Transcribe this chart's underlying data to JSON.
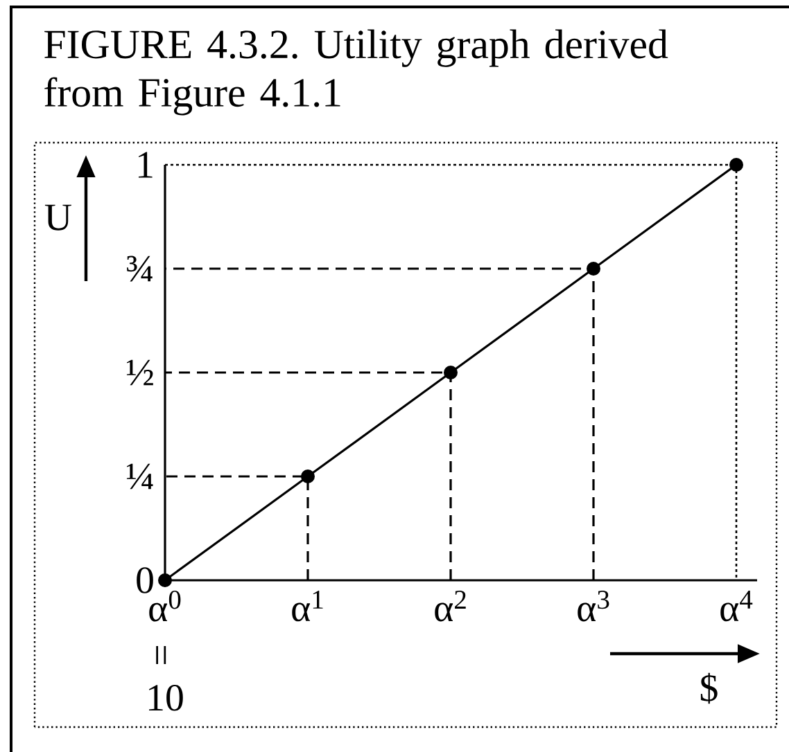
{
  "chart_data": {
    "type": "line",
    "title": "FIGURE 4.3.2. Utility graph derived from Figure 4.1.1",
    "xlabel": "$",
    "ylabel": "U",
    "annotations": [
      "=",
      "10"
    ],
    "categories": [
      "α$^{0}$",
      "α$^{1}$",
      "α$^{2}$",
      "α$^{3}$",
      "α$^{4}$"
    ],
    "ylim": [
      0,
      1
    ],
    "yticks": [
      0,
      {
        "value": 0.25,
        "label": "¼"
      },
      {
        "value": 0.5,
        "label": "½"
      },
      {
        "value": 0.75,
        "label": "¾"
      },
      1
    ],
    "series": [
      {
        "type": "line",
        "x": [
          "α$^{1}$",
          "α$^{1}$",
          "α$^{0}$"
        ],
        "values": [
          0,
          0.25,
          0.25
        ],
        "color": "#000000",
        "marker": "none",
        "line_style": "dashed"
      },
      {
        "type": "line",
        "x": [
          "α$^{2}$",
          "α$^{2}$",
          "α$^{0}$"
        ],
        "values": [
          0,
          0.5,
          0.5
        ],
        "color": "#000000",
        "marker": "none",
        "line_style": "dashed"
      },
      {
        "type": "line",
        "x": [
          "α$^{3}$",
          "α$^{3}$",
          "α$^{0}$"
        ],
        "values": [
          0,
          0.75,
          0.75
        ],
        "color": "#000000",
        "marker": "none",
        "line_style": "dashed"
      },
      {
        "values": [
          0,
          0.25,
          0.5,
          0.75,
          1
        ],
        "color": "#000000",
        "marker": "circle",
        "line_style": "solid"
      }
    ]
  }
}
